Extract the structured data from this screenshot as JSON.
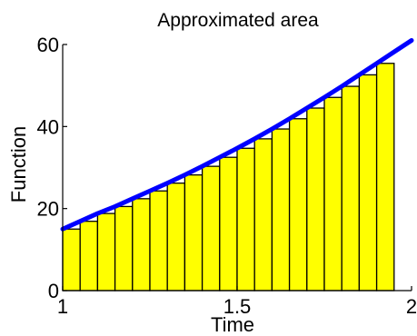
{
  "chart_data": {
    "type": "bar",
    "title": "Approximated area",
    "xlabel": "Time",
    "ylabel": "Function",
    "xlim": [
      1,
      2
    ],
    "ylim": [
      0,
      60
    ],
    "xticks": [
      {
        "value": 1,
        "label": "1"
      },
      {
        "value": 1.5,
        "label": "1.5"
      },
      {
        "value": 2,
        "label": "2"
      }
    ],
    "yticks": [
      {
        "value": 0,
        "label": "0"
      },
      {
        "value": 20,
        "label": "20"
      },
      {
        "value": 40,
        "label": "40"
      },
      {
        "value": 60,
        "label": "60"
      }
    ],
    "grid": false,
    "legend": "none",
    "bar_width": 0.05,
    "bars": [
      {
        "x": 1.0,
        "height": 15.0
      },
      {
        "x": 1.05,
        "height": 16.9
      },
      {
        "x": 1.1,
        "height": 18.8
      },
      {
        "x": 1.15,
        "height": 20.5
      },
      {
        "x": 1.2,
        "height": 22.4
      },
      {
        "x": 1.25,
        "height": 24.3
      },
      {
        "x": 1.3,
        "height": 26.2
      },
      {
        "x": 1.35,
        "height": 28.2
      },
      {
        "x": 1.4,
        "height": 30.3
      },
      {
        "x": 1.45,
        "height": 32.5
      },
      {
        "x": 1.5,
        "height": 34.7
      },
      {
        "x": 1.55,
        "height": 37.0
      },
      {
        "x": 1.6,
        "height": 39.4
      },
      {
        "x": 1.65,
        "height": 41.9
      },
      {
        "x": 1.7,
        "height": 44.5
      },
      {
        "x": 1.75,
        "height": 47.1
      },
      {
        "x": 1.8,
        "height": 49.8
      },
      {
        "x": 1.85,
        "height": 52.6
      },
      {
        "x": 1.9,
        "height": 55.4
      }
    ],
    "curve": {
      "x": [
        1.0,
        1.05,
        1.1,
        1.15,
        1.2,
        1.25,
        1.3,
        1.35,
        1.4,
        1.45,
        1.5,
        1.55,
        1.6,
        1.65,
        1.7,
        1.75,
        1.8,
        1.85,
        1.9,
        1.95,
        2.0
      ],
      "y": [
        15.0,
        16.9,
        18.8,
        20.5,
        22.4,
        24.3,
        26.2,
        28.2,
        30.3,
        32.5,
        34.7,
        37.0,
        39.4,
        41.9,
        44.5,
        47.1,
        49.8,
        52.6,
        55.4,
        58.2,
        61.0
      ]
    },
    "colors": {
      "bar_fill": "#ffff00",
      "bar_stroke": "#000000",
      "curve": "#0000ff",
      "axes": "#000000"
    }
  }
}
